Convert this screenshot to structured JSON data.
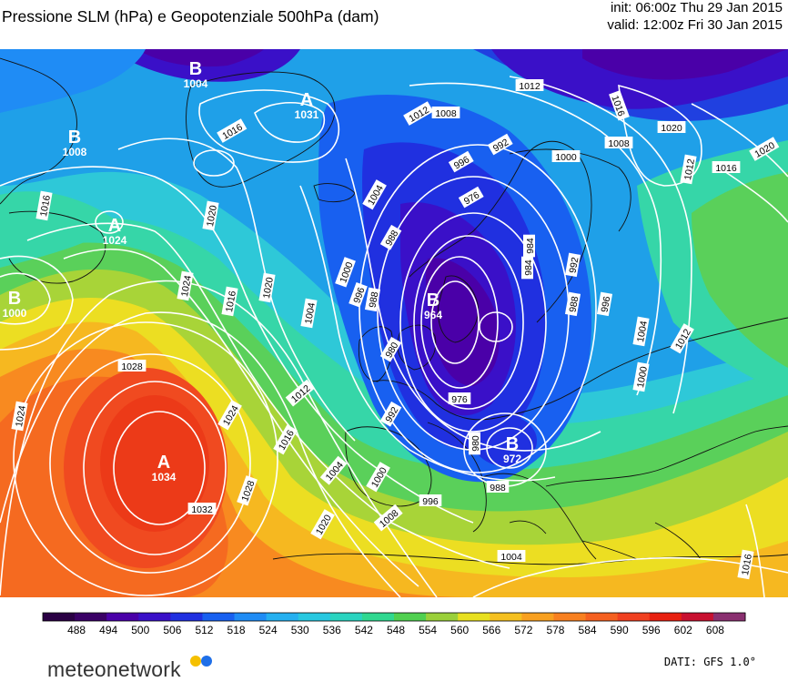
{
  "header": {
    "title": "Pressione SLM (hPa) e Geopotenziale 500hPa (dam)",
    "init": "init: 06:00z Thu 29 Jan 2015",
    "valid": "valid: 12:00z Fri 30 Jan 2015"
  },
  "centers": [
    {
      "letter": "B",
      "value": "1004"
    },
    {
      "letter": "A",
      "value": "1031"
    },
    {
      "letter": "B",
      "value": "1008"
    },
    {
      "letter": "A",
      "value": "1024"
    },
    {
      "letter": "B",
      "value": "1000"
    },
    {
      "letter": "B",
      "value": "964"
    },
    {
      "letter": "A",
      "value": "1034"
    },
    {
      "letter": "B",
      "value": "972"
    }
  ],
  "isobar_labels": [
    "1012",
    "1016",
    "1020",
    "1016",
    "1008",
    "1016",
    "1000",
    "1020",
    "1012",
    "1016",
    "1020",
    "1024",
    "1016",
    "1020",
    "1012",
    "1008",
    "1004",
    "996",
    "992",
    "976",
    "988",
    "984",
    "992",
    "988",
    "996",
    "1004",
    "1000",
    "1012",
    "1004",
    "1000",
    "996",
    "988",
    "976",
    "992",
    "984",
    "980",
    "1028",
    "1024",
    "1024",
    "1032",
    "1028",
    "1016",
    "1012",
    "1004",
    "1000",
    "1008",
    "996",
    "988",
    "1020",
    "1004",
    "1016",
    "980"
  ],
  "legend": {
    "ticks": [
      "488",
      "494",
      "500",
      "506",
      "512",
      "518",
      "524",
      "530",
      "536",
      "542",
      "548",
      "554",
      "560",
      "566",
      "572",
      "578",
      "584",
      "590",
      "596",
      "602",
      "608"
    ],
    "colors": [
      "#3a0066",
      "#4a00a8",
      "#3a10c8",
      "#2030e0",
      "#1860f0",
      "#1f8cf5",
      "#25b0f0",
      "#28c8e0",
      "#2ad4c0",
      "#30d890",
      "#50d050",
      "#9ad03a",
      "#e8e020",
      "#f5c020",
      "#f8a020",
      "#f88020",
      "#f56020",
      "#f04020",
      "#e82010",
      "#c81030",
      "#8a3070"
    ]
  },
  "footer": {
    "brand": "meteonetwork",
    "credit": "DATI: GFS 1.0°"
  }
}
